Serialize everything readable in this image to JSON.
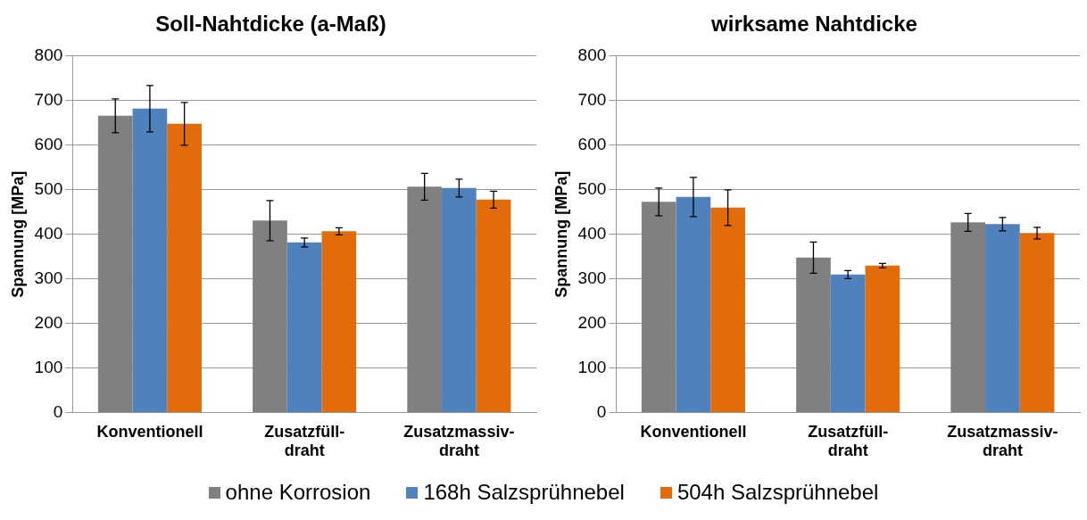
{
  "chart_data": [
    {
      "type": "bar",
      "title": "Soll-Nahtdicke (a-Maß)",
      "ylabel": "Spannung [MPa]",
      "categories": [
        "Konventionell",
        "Zusatzfüll-draht",
        "Zusatzmassiv-draht"
      ],
      "ylim": [
        0,
        800
      ],
      "yticks": [
        0,
        100,
        200,
        300,
        400,
        500,
        600,
        700,
        800
      ],
      "grid": "y",
      "legend": "bottom",
      "series": [
        {
          "name": "ohne Korrosion",
          "color": "#808080",
          "values": [
            666,
            431,
            507
          ],
          "errors": [
            38,
            45,
            30
          ]
        },
        {
          "name": "168h Salzsprühnebel",
          "color": "#4f81bd",
          "values": [
            682,
            382,
            504
          ],
          "errors": [
            52,
            10,
            20
          ]
        },
        {
          "name": "504h Salzsprühnebel",
          "color": "#e36c0a",
          "values": [
            648,
            407,
            478
          ],
          "errors": [
            48,
            8,
            19
          ]
        }
      ]
    },
    {
      "type": "bar",
      "title": "wirksame Nahtdicke",
      "ylabel": "Spannung [MPa]",
      "categories": [
        "Konventionell",
        "Zusatzfüll-draht",
        "Zusatzmassiv-draht"
      ],
      "ylim": [
        0,
        800
      ],
      "yticks": [
        0,
        100,
        200,
        300,
        400,
        500,
        600,
        700,
        800
      ],
      "grid": "y",
      "series": [
        {
          "color": "#808080",
          "values": [
            473,
            348,
            427
          ],
          "errors": [
            31,
            35,
            20
          ]
        },
        {
          "color": "#4f81bd",
          "values": [
            484,
            310,
            423
          ],
          "errors": [
            44,
            9,
            15
          ]
        },
        {
          "color": "#e36c0a",
          "values": [
            460,
            330,
            403
          ],
          "errors": [
            40,
            5,
            13
          ]
        }
      ]
    }
  ]
}
